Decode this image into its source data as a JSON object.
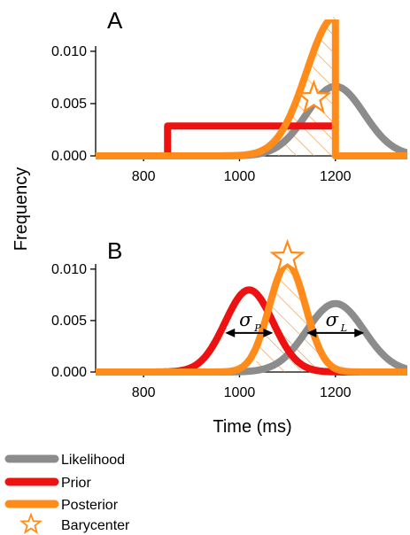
{
  "chart_data": {
    "type": "line",
    "xlabel": "Time (ms)",
    "ylabel": "Frequency",
    "xlim": [
      700,
      1350
    ],
    "ylim": [
      0,
      0.0105
    ],
    "xticks": [
      800,
      1000,
      1200
    ],
    "xtick_labels": [
      "800",
      "1000",
      "1200"
    ],
    "yticks": [
      0,
      0.005,
      0.01
    ],
    "ytick_labels": [
      "0.000",
      "0.005",
      "0.010"
    ],
    "legend": {
      "position": "bottom-left",
      "entries": [
        {
          "name": "Likelihood",
          "color": "#8c8c8c",
          "marker": "line"
        },
        {
          "name": "Prior",
          "color": "#ee1111",
          "marker": "line"
        },
        {
          "name": "Posterior",
          "color": "#ff8c1a",
          "marker": "line"
        },
        {
          "name": "Barycenter",
          "color": "#ff8c1a",
          "marker": "star-outline"
        }
      ]
    },
    "panels": [
      {
        "label": "A",
        "series": [
          {
            "name": "Likelihood",
            "color": "#8c8c8c",
            "kind": "gaussian",
            "mean": 1200,
            "sd": 60,
            "x_range": [
              700,
              1350
            ]
          },
          {
            "name": "Prior",
            "color": "#ee1111",
            "kind": "uniform",
            "low": 850,
            "high": 1200,
            "density": 0.00286
          },
          {
            "name": "Posterior",
            "color": "#ff8c1a",
            "kind": "truncated_gaussian",
            "mean": 1200,
            "sd": 60,
            "low": 850,
            "high": 1200
          }
        ],
        "hatched_region": [
          1080,
          1200
        ],
        "barycenter": {
          "x": 1155,
          "y": 0.0055
        },
        "annotations": []
      },
      {
        "label": "B",
        "series": [
          {
            "name": "Likelihood",
            "color": "#8c8c8c",
            "kind": "gaussian",
            "mean": 1200,
            "sd": 60,
            "x_range": [
              700,
              1350
            ]
          },
          {
            "name": "Prior",
            "color": "#ee1111",
            "kind": "gaussian",
            "mean": 1020,
            "sd": 50,
            "x_range": [
              700,
              1350
            ]
          },
          {
            "name": "Posterior",
            "color": "#ff8c1a",
            "kind": "gaussian",
            "mean": 1100,
            "sd": 38,
            "x_range": [
              700,
              1350
            ]
          }
        ],
        "hatched_region": [
          1035,
          1170
        ],
        "barycenter": {
          "x": 1100,
          "y": 0.0111
        },
        "annotations": [
          {
            "symbol": "σ",
            "subscript": "P",
            "from": 970,
            "to": 1070,
            "y": 0.0038
          },
          {
            "symbol": "σ",
            "subscript": "L",
            "from": 1140,
            "to": 1260,
            "y": 0.0038
          }
        ]
      }
    ]
  }
}
